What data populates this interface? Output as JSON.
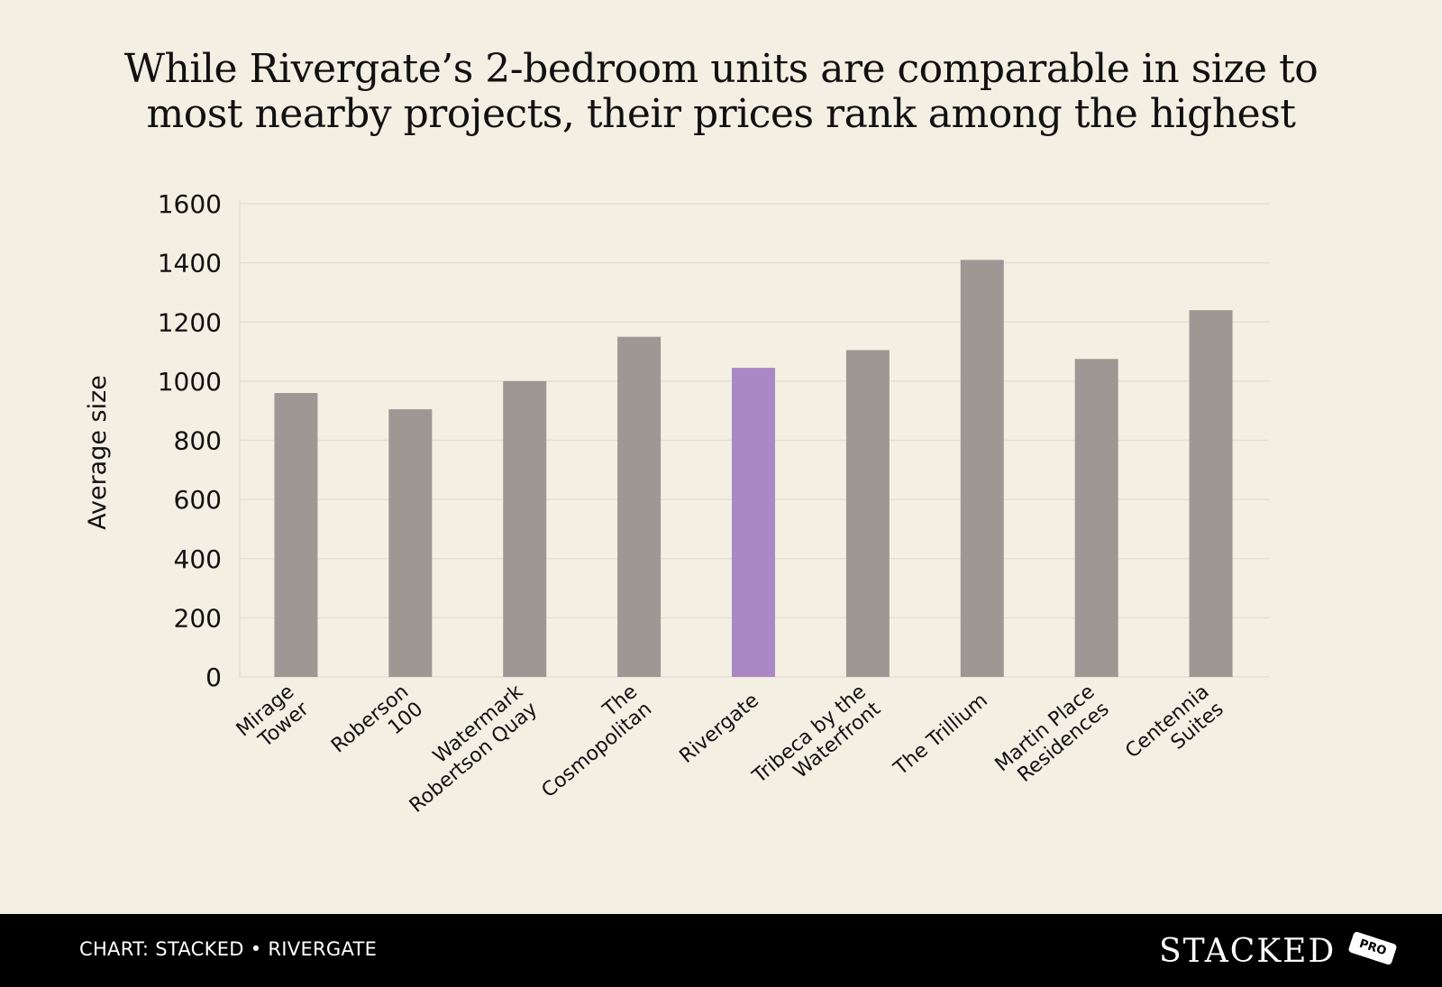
{
  "title_lines": [
    "While Rivergate’s 2-bedroom units are comparable in size to",
    "most nearby projects, their prices rank among the highest"
  ],
  "chart_data": {
    "type": "bar",
    "categories": [
      [
        "Mirage",
        "Tower"
      ],
      [
        "Roberson",
        "100"
      ],
      [
        "Watermark",
        "Robertson Quay"
      ],
      [
        "The",
        "Cosmopolitan"
      ],
      [
        "Rivergate"
      ],
      [
        "Tribeca by the",
        "Waterfront"
      ],
      [
        "The Trillium"
      ],
      [
        "Martin Place",
        "Residences"
      ],
      [
        "Centennia",
        "Suites"
      ]
    ],
    "values": [
      960,
      905,
      1000,
      1150,
      1045,
      1105,
      1410,
      1075,
      1240
    ],
    "highlight": "Rivergate",
    "xlabel": "",
    "ylabel": "Average size",
    "ylim": [
      0,
      1600
    ],
    "yticks": [
      0,
      200,
      400,
      600,
      800,
      1000,
      1200,
      1400,
      1600
    ],
    "grid": true,
    "colors": {
      "bar": "#9e9794",
      "highlight": "#ab88c5",
      "grid": "#e3dfd4",
      "text": "#111111"
    }
  },
  "footer": {
    "credit": "CHART: STACKED • RIVERGATE",
    "logo_text": "STACKED",
    "logo_badge": "PRO"
  }
}
